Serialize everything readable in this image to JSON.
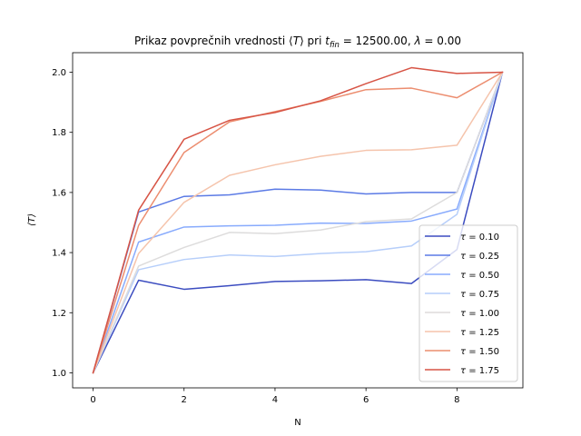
{
  "chart_data": {
    "type": "line",
    "title": "Prikaz povprečnih vrednosti ⟨T⟩ pri t_fin = 12500.00, λ = 0.00",
    "title_parts": {
      "prefix": "Prikaz povprečnih vrednosti ⟨",
      "T": "T",
      "mid": "⟩ pri ",
      "t": "t",
      "sub": "fin",
      "equals_value": " = 12500.00, ",
      "lambda": "λ",
      "suffix": " = 0.00"
    },
    "xlabel": "N",
    "ylabel": "⟨T⟩",
    "xlim": [
      -0.45,
      9.45
    ],
    "ylim": [
      0.95,
      2.065
    ],
    "xticks": [
      0,
      2,
      4,
      6,
      8
    ],
    "yticks": [
      1.0,
      1.2,
      1.4,
      1.6,
      1.8,
      2.0
    ],
    "grid": false,
    "legend_position": "lower-right",
    "x": [
      0,
      1,
      2,
      3,
      4,
      5,
      6,
      7,
      8,
      9
    ],
    "series": [
      {
        "name": "τ = 0.10",
        "label_prefix": "τ",
        "label_value": " = 0.10",
        "color": "#3b4cc0",
        "values": [
          1.0,
          1.308,
          1.278,
          1.29,
          1.304,
          1.306,
          1.31,
          1.297,
          1.41,
          2.0
        ]
      },
      {
        "name": "τ = 0.25",
        "label_prefix": "τ",
        "label_value": " = 0.25",
        "color": "#5b7ae5",
        "values": [
          1.0,
          1.535,
          1.587,
          1.592,
          1.611,
          1.608,
          1.595,
          1.6,
          1.6,
          2.0
        ]
      },
      {
        "name": "τ = 0.50",
        "label_prefix": "τ",
        "label_value": " = 0.50",
        "color": "#88abfd",
        "values": [
          1.0,
          1.435,
          1.485,
          1.489,
          1.491,
          1.498,
          1.497,
          1.505,
          1.545,
          2.0
        ]
      },
      {
        "name": "τ = 0.75",
        "label_prefix": "τ",
        "label_value": " = 0.75",
        "color": "#b6cefa",
        "values": [
          1.0,
          1.343,
          1.377,
          1.392,
          1.387,
          1.397,
          1.403,
          1.422,
          1.527,
          2.0
        ]
      },
      {
        "name": "τ = 1.00",
        "label_prefix": "τ",
        "label_value": " = 1.00",
        "color": "#dddcdc",
        "values": [
          1.0,
          1.355,
          1.417,
          1.467,
          1.463,
          1.475,
          1.503,
          1.512,
          1.6,
          2.0
        ]
      },
      {
        "name": "τ = 1.25",
        "label_prefix": "τ",
        "label_value": " = 1.25",
        "color": "#f5c4ac",
        "values": [
          1.0,
          1.397,
          1.567,
          1.657,
          1.692,
          1.72,
          1.74,
          1.742,
          1.757,
          2.0
        ]
      },
      {
        "name": "τ = 1.50",
        "label_prefix": "τ",
        "label_value": " = 1.50",
        "color": "#ec8d6f",
        "values": [
          1.0,
          1.49,
          1.733,
          1.835,
          1.869,
          1.903,
          1.942,
          1.947,
          1.915,
          2.0
        ]
      },
      {
        "name": "τ = 1.75",
        "label_prefix": "τ",
        "label_value": " = 1.75",
        "color": "#d75445",
        "values": [
          1.0,
          1.541,
          1.777,
          1.84,
          1.866,
          1.905,
          1.962,
          2.015,
          1.996,
          2.0
        ]
      }
    ]
  }
}
